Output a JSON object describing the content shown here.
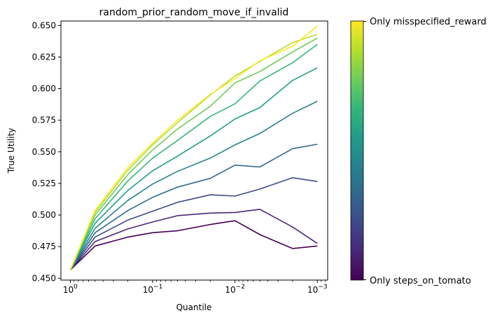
{
  "chart_data": {
    "type": "line",
    "title": "random_prior_random_move_if_invalid",
    "xlabel": "Quantile",
    "ylabel": "True Utility",
    "x_scale": "log",
    "x_reversed": true,
    "xlim": [
      1.3,
      0.00075
    ],
    "ylim": [
      0.4485,
      0.6535
    ],
    "x_ticks": [
      {
        "value": 1,
        "label": "10^0"
      },
      {
        "value": 0.1,
        "label": "10^-1"
      },
      {
        "value": 0.01,
        "label": "10^-2"
      },
      {
        "value": 0.001,
        "label": "10^-3"
      }
    ],
    "y_ticks": [
      {
        "value": 0.45,
        "label": "0.450"
      },
      {
        "value": 0.475,
        "label": "0.475"
      },
      {
        "value": 0.5,
        "label": "0.500"
      },
      {
        "value": 0.525,
        "label": "0.525"
      },
      {
        "value": 0.55,
        "label": "0.550"
      },
      {
        "value": 0.575,
        "label": "0.575"
      },
      {
        "value": 0.6,
        "label": "0.600"
      },
      {
        "value": 0.625,
        "label": "0.625"
      },
      {
        "value": 0.65,
        "label": "0.650"
      }
    ],
    "x": [
      1,
      0.5,
      0.2,
      0.1,
      0.05,
      0.02,
      0.01,
      0.005,
      0.002,
      0.001
    ],
    "series": [
      {
        "color": "#440154",
        "values": [
          0.4565,
          0.4755,
          0.4825,
          0.486,
          0.4875,
          0.4925,
          0.4955,
          0.4845,
          0.4735,
          0.4755
        ]
      },
      {
        "color": "#482878",
        "values": [
          0.4565,
          0.479,
          0.489,
          0.4945,
          0.4995,
          0.5015,
          0.502,
          0.5045,
          0.4905,
          0.4775
        ]
      },
      {
        "color": "#3e4989",
        "values": [
          0.4565,
          0.4825,
          0.496,
          0.503,
          0.51,
          0.516,
          0.515,
          0.5205,
          0.5295,
          0.5265
        ]
      },
      {
        "color": "#31688e",
        "values": [
          0.4565,
          0.486,
          0.5035,
          0.514,
          0.522,
          0.529,
          0.5395,
          0.538,
          0.5525,
          0.556
        ]
      },
      {
        "color": "#26828e",
        "values": [
          0.4565,
          0.4895,
          0.5115,
          0.5245,
          0.5345,
          0.545,
          0.5555,
          0.5645,
          0.5805,
          0.59
        ]
      },
      {
        "color": "#1f9e89",
        "values": [
          0.4565,
          0.4935,
          0.5195,
          0.535,
          0.5465,
          0.5625,
          0.576,
          0.585,
          0.6065,
          0.6165
        ]
      },
      {
        "color": "#35b779",
        "values": [
          0.4565,
          0.497,
          0.527,
          0.545,
          0.559,
          0.578,
          0.588,
          0.606,
          0.6205,
          0.635
        ]
      },
      {
        "color": "#6ece58",
        "values": [
          0.4565,
          0.5,
          0.532,
          0.5515,
          0.568,
          0.586,
          0.6045,
          0.6135,
          0.629,
          0.64
        ]
      },
      {
        "color": "#b5de2b",
        "values": [
          0.4565,
          0.502,
          0.5355,
          0.5555,
          0.573,
          0.595,
          0.61,
          0.6215,
          0.6365,
          0.643
        ]
      },
      {
        "color": "#fde725",
        "values": [
          0.4565,
          0.5035,
          0.5375,
          0.557,
          0.575,
          0.5955,
          0.608,
          0.622,
          0.6335,
          0.6495
        ]
      }
    ],
    "legend": "none",
    "grid": false,
    "colorbar": {
      "colormap": "viridis",
      "colors": [
        "#440154",
        "#482878",
        "#3e4989",
        "#31688e",
        "#26828e",
        "#1f9e89",
        "#35b779",
        "#6ece58",
        "#b5de2b",
        "#fde725"
      ],
      "top_label": "Only misspecified_reward",
      "bottom_label": "Only steps_on_tomato"
    }
  }
}
